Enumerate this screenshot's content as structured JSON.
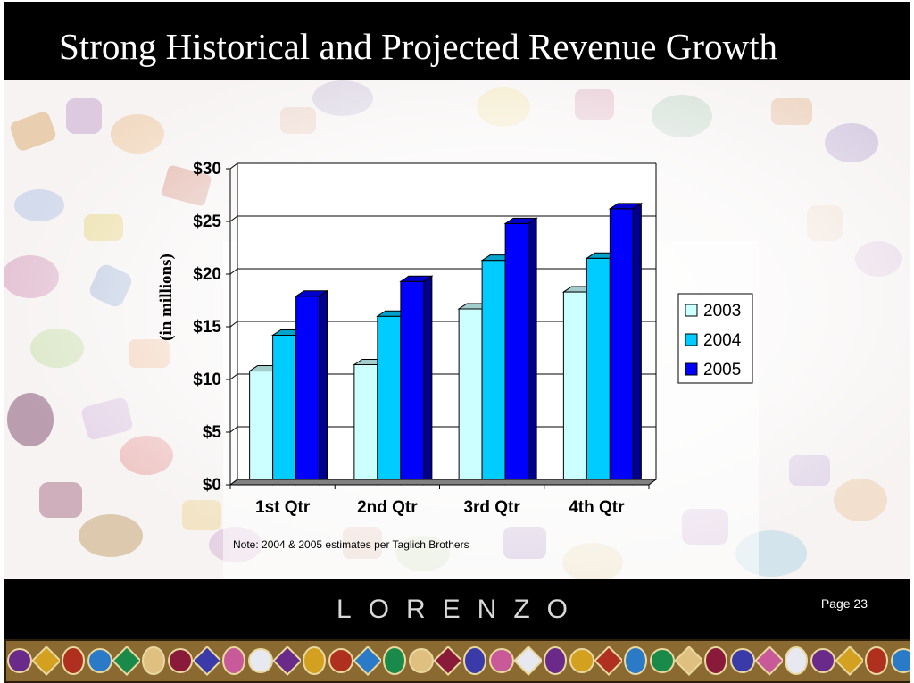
{
  "slide": {
    "title": "Strong Historical and Projected Revenue Growth",
    "brand": "LORENZO",
    "page_label": "Page 23",
    "note": "Note:  2004 & 2005 estimates per Taglich Brothers"
  },
  "colors": {
    "title_bar": "#000000",
    "series_2003": "#ccffff",
    "series_2004": "#00ccff",
    "series_2005": "#0000ff"
  },
  "chart_data": {
    "type": "bar",
    "style": "3d clustered column",
    "categories": [
      "1st Qtr",
      "2nd Qtr",
      "3rd Qtr",
      "4th Qtr"
    ],
    "series": [
      {
        "name": "2003",
        "values": [
          10.8,
          11.4,
          16.7,
          18.3
        ]
      },
      {
        "name": "2004",
        "values": [
          14.2,
          16.0,
          21.3,
          21.5
        ]
      },
      {
        "name": "2005",
        "values": [
          17.9,
          19.3,
          24.8,
          26.2
        ]
      }
    ],
    "ylabel": "(in millions)",
    "ylim": [
      0,
      30
    ],
    "yticks": [
      0,
      5,
      10,
      15,
      20,
      25,
      30
    ],
    "ytick_labels": [
      "$0",
      "$5",
      "$10",
      "$15",
      "$20",
      "$25",
      "$30"
    ],
    "grid": true,
    "legend": "right"
  }
}
